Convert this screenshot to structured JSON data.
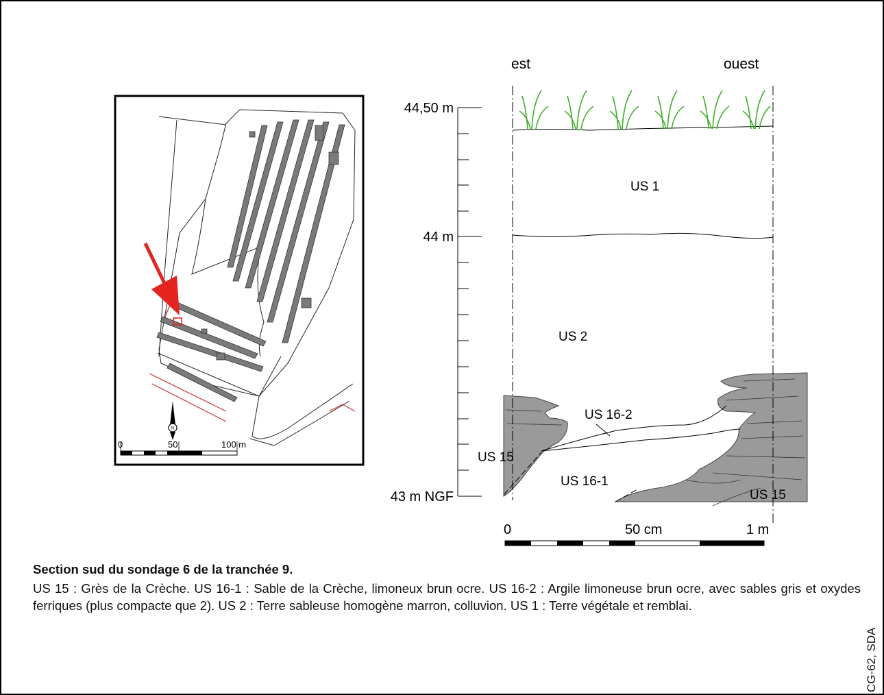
{
  "map": {
    "scale_labels": [
      "0",
      "50",
      "100 m"
    ],
    "north_symbol": "N"
  },
  "section": {
    "orientation": {
      "left": "est",
      "right": "ouest"
    },
    "elevation_labels": [
      "44,50 m",
      "44 m",
      "43 m NGF"
    ],
    "layer_labels": {
      "us1": "US 1",
      "us2": "US 2",
      "us16_2": "US 16-2",
      "us15_left": "US 15",
      "us16_1": "US 16-1",
      "us15_right": "US 15"
    },
    "scale_labels": [
      "0",
      "50 cm",
      "1 m"
    ]
  },
  "caption": {
    "title": "Section sud du sondage 6 de la tranchée 9.",
    "body": "US 15 : Grès de la Crèche. US 16-1 : Sable de la Crèche, limoneux brun ocre. US 16-2 : Argile limoneuse brun ocre,  avec sables gris et oxydes ferriques (plus compacte que 2). US 2 : Terre sableuse homogène marron, colluvion. US 1 : Terre végétale et remblai."
  },
  "credit": "CG-62, SDA",
  "colors": {
    "rock": "#9a9a9a",
    "arrow": "#e52420",
    "grass": "#3fae2a",
    "road": "#d23030"
  }
}
